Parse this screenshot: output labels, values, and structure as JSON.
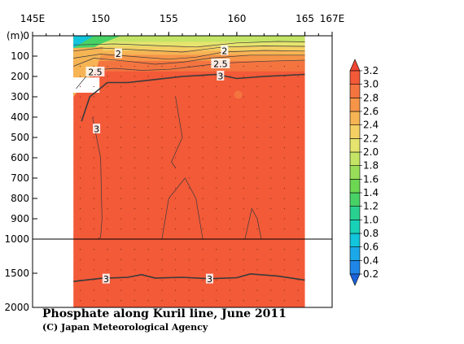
{
  "chart_data": {
    "type": "heatmap",
    "title": "Phosphate along Kuril line, June 2011",
    "credit": "(C) Japan Meteorological Agency",
    "y_unit_label": "(m)",
    "x_ticks": [
      "145E",
      "150",
      "155",
      "160",
      "165",
      "167E"
    ],
    "x_tick_values": [
      145,
      150,
      155,
      160,
      165,
      167
    ],
    "y_ticks_upper": [
      "0",
      "100",
      "200",
      "300",
      "400",
      "500",
      "600",
      "700",
      "800",
      "900",
      "1000"
    ],
    "y_tick_values_upper": [
      0,
      100,
      200,
      300,
      400,
      500,
      600,
      700,
      800,
      900,
      1000
    ],
    "y_ticks_lower": [
      "1500",
      "2000"
    ],
    "y_tick_values_lower": [
      1500,
      2000
    ],
    "xlim": [
      145,
      167
    ],
    "ylim_upper": [
      0,
      1000
    ],
    "ylim_lower": [
      1000,
      2000
    ],
    "data_x_range": [
      148,
      165
    ],
    "colorbar": {
      "values": [
        "0.2",
        "0.4",
        "0.6",
        "0.8",
        "1.0",
        "1.2",
        "1.4",
        "1.6",
        "1.8",
        "2.0",
        "2.2",
        "2.4",
        "2.6",
        "2.8",
        "3.0",
        "3.2"
      ],
      "colors": [
        "#1a62d8",
        "#1f86e8",
        "#1ba8e8",
        "#12c4dc",
        "#18d2b8",
        "#2ad090",
        "#48d266",
        "#6cd852",
        "#98de58",
        "#c4e466",
        "#e6e46e",
        "#f4d064",
        "#f6b454",
        "#f69448",
        "#f47440",
        "#f25a38",
        "#ee4632"
      ]
    },
    "contour_labels": [
      {
        "text": "2",
        "lon": 151.3,
        "depth": 90
      },
      {
        "text": "2",
        "lon": 159.1,
        "depth": 75
      },
      {
        "text": "2.5",
        "lon": 149.6,
        "depth": 180
      },
      {
        "text": "2.5",
        "lon": 158.8,
        "depth": 140
      },
      {
        "text": "3",
        "lon": 158.8,
        "depth": 200
      },
      {
        "text": "3",
        "lon": 149.7,
        "depth": 460
      },
      {
        "text": "3",
        "lon": 150.4,
        "depth": 1590
      },
      {
        "text": "3",
        "lon": 158.0,
        "depth": 1590
      }
    ]
  }
}
